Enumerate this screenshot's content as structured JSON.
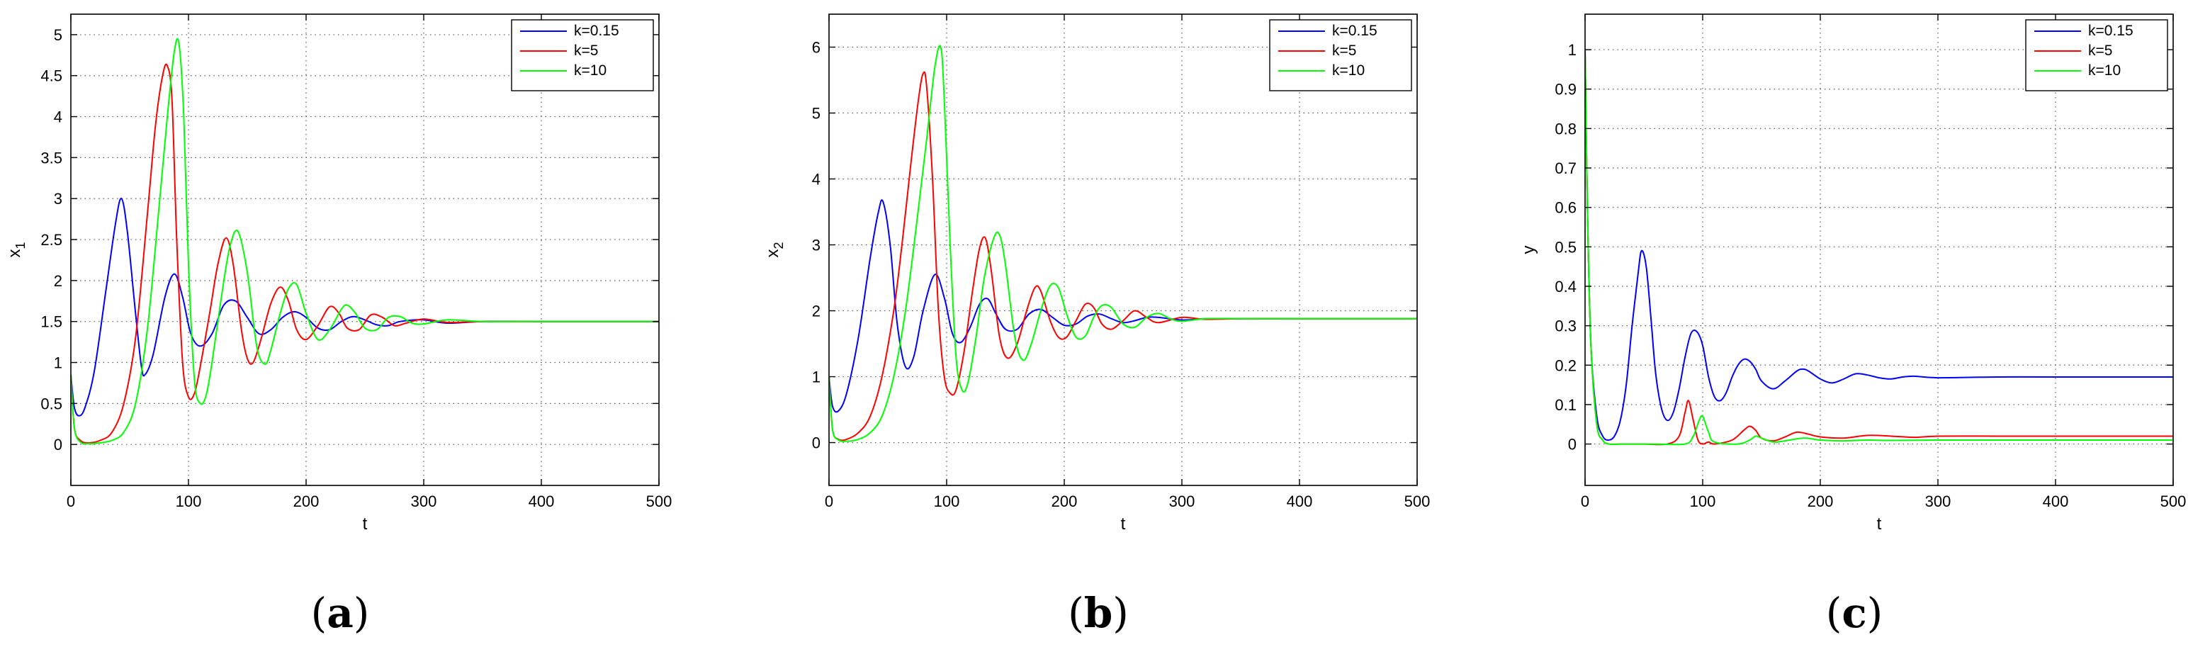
{
  "panels": [
    {
      "label": "(a)",
      "label_letter": "a",
      "chart_data": {
        "type": "line",
        "title": "",
        "xlabel": "t",
        "ylabel": "x",
        "ylabel_sub": "1",
        "xlim": [
          0,
          500
        ],
        "ylim": [
          -0.5,
          5.25
        ],
        "xticks": [
          0,
          100,
          200,
          300,
          400,
          500
        ],
        "yticks": [
          0,
          0.5,
          1,
          1.5,
          2,
          2.5,
          3,
          3.5,
          4,
          4.5,
          5
        ],
        "grid": true,
        "legend_position": "top-right",
        "series": [
          {
            "name": "k=0.15",
            "color": "#0000ff",
            "x": [
              0,
              3,
              7,
              12,
              20,
              30,
              38,
              43,
              48,
              55,
              60,
              63,
              70,
              80,
              88,
              95,
              102,
              110,
              120,
              130,
              140,
              150,
              160,
              170,
              180,
              190,
              200,
              210,
              220,
              230,
              240,
              250,
              260,
              270,
              280,
              300,
              320,
              350,
              400,
              450,
              500
            ],
            "y": [
              0.85,
              0.45,
              0.35,
              0.45,
              0.9,
              1.9,
              2.7,
              3.0,
              2.6,
              1.6,
              0.95,
              0.85,
              1.1,
              1.8,
              2.08,
              1.8,
              1.35,
              1.2,
              1.35,
              1.7,
              1.75,
              1.55,
              1.35,
              1.4,
              1.55,
              1.62,
              1.55,
              1.42,
              1.4,
              1.5,
              1.56,
              1.52,
              1.46,
              1.45,
              1.5,
              1.52,
              1.48,
              1.5,
              1.5,
              1.5,
              1.5
            ]
          },
          {
            "name": "k=5",
            "color": "#ff0000",
            "x": [
              0,
              3,
              8,
              15,
              25,
              35,
              45,
              55,
              65,
              72,
              78,
              82,
              86,
              90,
              95,
              100,
              105,
              110,
              118,
              125,
              132,
              138,
              145,
              150,
              155,
              162,
              170,
              178,
              185,
              192,
              200,
              210,
              220,
              228,
              235,
              245,
              255,
              265,
              275,
              285,
              300,
              320,
              350,
              400,
              450,
              500
            ],
            "y": [
              0.85,
              0.2,
              0.05,
              0.02,
              0.05,
              0.15,
              0.5,
              1.3,
              2.8,
              3.9,
              4.5,
              4.62,
              4.2,
              2.5,
              1.0,
              0.58,
              0.62,
              0.95,
              1.6,
              2.2,
              2.52,
              2.2,
              1.4,
              1.05,
              1.0,
              1.3,
              1.72,
              1.92,
              1.75,
              1.4,
              1.28,
              1.45,
              1.68,
              1.6,
              1.42,
              1.4,
              1.58,
              1.55,
              1.45,
              1.48,
              1.53,
              1.49,
              1.5,
              1.5,
              1.5,
              1.5
            ]
          },
          {
            "name": "k=10",
            "color": "#00ff00",
            "x": [
              0,
              3,
              8,
              15,
              25,
              35,
              45,
              55,
              65,
              75,
              82,
              88,
              92,
              96,
              100,
              105,
              110,
              115,
              120,
              128,
              135,
              142,
              150,
              158,
              165,
              170,
              178,
              185,
              192,
              200,
              210,
              220,
              230,
              235,
              242,
              250,
              260,
              270,
              280,
              290,
              300,
              320,
              350,
              400,
              450,
              500
            ],
            "y": [
              0.85,
              0.2,
              0.03,
              0.01,
              0.02,
              0.05,
              0.15,
              0.5,
              1.4,
              2.9,
              4.0,
              4.8,
              4.88,
              4.0,
              2.2,
              0.8,
              0.5,
              0.6,
              1.0,
              1.8,
              2.4,
              2.6,
              2.1,
              1.2,
              0.98,
              1.15,
              1.6,
              1.9,
              1.95,
              1.6,
              1.28,
              1.4,
              1.65,
              1.7,
              1.6,
              1.42,
              1.4,
              1.55,
              1.56,
              1.48,
              1.47,
              1.52,
              1.5,
              1.5,
              1.5,
              1.5
            ]
          }
        ]
      }
    },
    {
      "label": "(b)",
      "label_letter": "b",
      "chart_data": {
        "type": "line",
        "title": "",
        "xlabel": "t",
        "ylabel": "x",
        "ylabel_sub": "2",
        "xlim": [
          0,
          500
        ],
        "ylim": [
          -0.65,
          6.5
        ],
        "xticks": [
          0,
          100,
          200,
          300,
          400,
          500
        ],
        "yticks": [
          0,
          1,
          2,
          3,
          4,
          5,
          6
        ],
        "grid": true,
        "legend_position": "top-right",
        "series": [
          {
            "name": "k=0.15",
            "color": "#0000ff",
            "x": [
              0,
              3,
              8,
              15,
              25,
              35,
              42,
              46,
              52,
              58,
              65,
              72,
              80,
              90,
              98,
              105,
              112,
              120,
              128,
              135,
              142,
              150,
              160,
              170,
              180,
              190,
              200,
              210,
              220,
              230,
              240,
              250,
              260,
              270,
              280,
              300,
              320,
              350,
              400,
              450,
              500
            ],
            "y": [
              1.0,
              0.55,
              0.48,
              0.75,
              1.6,
              2.8,
              3.5,
              3.65,
              3.0,
              1.8,
              1.15,
              1.3,
              2.0,
              2.55,
              2.2,
              1.65,
              1.52,
              1.75,
              2.1,
              2.18,
              1.95,
              1.72,
              1.72,
              1.95,
              2.02,
              1.9,
              1.78,
              1.8,
              1.92,
              1.95,
              1.88,
              1.82,
              1.85,
              1.9,
              1.9,
              1.86,
              1.88,
              1.88,
              1.88,
              1.88,
              1.88
            ]
          },
          {
            "name": "k=5",
            "color": "#ff0000",
            "x": [
              0,
              3,
              8,
              15,
              25,
              35,
              45,
              55,
              62,
              70,
              76,
              80,
              83,
              88,
              93,
              98,
              103,
              108,
              115,
              122,
              128,
              133,
              138,
              145,
              152,
              160,
              168,
              175,
              180,
              188,
              195,
              202,
              210,
              218,
              225,
              232,
              240,
              250,
              260,
              270,
              280,
              300,
              320,
              350,
              400,
              450,
              500
            ],
            "y": [
              1.0,
              0.2,
              0.05,
              0.05,
              0.15,
              0.4,
              1.0,
              2.0,
              3.0,
              4.3,
              5.2,
              5.6,
              5.4,
              4.0,
              2.0,
              1.0,
              0.75,
              0.8,
              1.4,
              2.3,
              2.95,
              3.1,
              2.6,
              1.6,
              1.28,
              1.5,
              2.0,
              2.35,
              2.3,
              1.85,
              1.6,
              1.6,
              1.85,
              2.1,
              2.05,
              1.8,
              1.72,
              1.85,
              2.0,
              1.9,
              1.82,
              1.9,
              1.87,
              1.88,
              1.88,
              1.88,
              1.88
            ]
          },
          {
            "name": "k=10",
            "color": "#00ff00",
            "x": [
              0,
              3,
              8,
              15,
              25,
              35,
              45,
              55,
              65,
              75,
              83,
              90,
              95,
              98,
              103,
              108,
              113,
              118,
              125,
              132,
              140,
              145,
              150,
              158,
              165,
              172,
              180,
              188,
              195,
              202,
              210,
              218,
              225,
              232,
              240,
              250,
              260,
              270,
              280,
              290,
              300,
              320,
              350,
              400,
              450,
              500
            ],
            "y": [
              1.0,
              0.2,
              0.04,
              0.02,
              0.05,
              0.15,
              0.4,
              1.0,
              2.0,
              3.4,
              4.6,
              5.7,
              6.0,
              5.2,
              3.0,
              1.3,
              0.8,
              0.9,
              1.6,
              2.5,
              3.1,
              3.15,
              2.7,
              1.6,
              1.25,
              1.5,
              2.0,
              2.38,
              2.35,
              1.95,
              1.6,
              1.62,
              1.9,
              2.08,
              2.05,
              1.8,
              1.75,
              1.9,
              1.96,
              1.88,
              1.84,
              1.88,
              1.88,
              1.88,
              1.88,
              1.88
            ]
          }
        ]
      }
    },
    {
      "label": "(c)",
      "label_letter": "c",
      "chart_data": {
        "type": "line",
        "title": "",
        "xlabel": "t",
        "ylabel": "y",
        "ylabel_sub": "",
        "xlim": [
          0,
          500
        ],
        "ylim": [
          -0.105,
          1.09
        ],
        "xticks": [
          0,
          100,
          200,
          300,
          400,
          500
        ],
        "yticks": [
          0,
          0.1,
          0.2,
          0.3,
          0.4,
          0.5,
          0.6,
          0.7,
          0.8,
          0.9,
          1
        ],
        "grid": true,
        "legend_position": "top-right",
        "series": [
          {
            "name": "k=0.15",
            "color": "#0000ff",
            "x": [
              0,
              2,
              5,
              10,
              15,
              20,
              25,
              30,
              35,
              40,
              45,
              48,
              52,
              56,
              60,
              65,
              70,
              75,
              80,
              85,
              90,
              95,
              100,
              105,
              110,
              115,
              120,
              125,
              130,
              135,
              140,
              145,
              150,
              160,
              170,
              180,
              185,
              190,
              200,
              210,
              220,
              230,
              240,
              250,
              260,
              270,
              280,
              300,
              350,
              400,
              450,
              500
            ],
            "y": [
              1.0,
              0.6,
              0.25,
              0.07,
              0.02,
              0.01,
              0.02,
              0.06,
              0.15,
              0.3,
              0.43,
              0.49,
              0.45,
              0.32,
              0.18,
              0.09,
              0.06,
              0.08,
              0.14,
              0.22,
              0.28,
              0.285,
              0.25,
              0.17,
              0.12,
              0.11,
              0.13,
              0.17,
              0.2,
              0.215,
              0.21,
              0.19,
              0.16,
              0.14,
              0.16,
              0.185,
              0.19,
              0.185,
              0.165,
              0.155,
              0.165,
              0.178,
              0.175,
              0.168,
              0.165,
              0.17,
              0.172,
              0.168,
              0.17,
              0.17,
              0.17,
              0.17
            ]
          },
          {
            "name": "k=5",
            "color": "#ff0000",
            "x": [
              0,
              2,
              5,
              10,
              15,
              20,
              30,
              50,
              70,
              80,
              85,
              88,
              92,
              96,
              100,
              105,
              110,
              125,
              135,
              140,
              145,
              150,
              160,
              170,
              180,
              190,
              200,
              220,
              240,
              260,
              280,
              300,
              350,
              400,
              450,
              500
            ],
            "y": [
              1.0,
              0.6,
              0.25,
              0.05,
              0.01,
              0.0,
              0.0,
              0.0,
              0.0,
              0.02,
              0.08,
              0.11,
              0.06,
              0.01,
              0.0,
              0.005,
              0.0,
              0.01,
              0.035,
              0.045,
              0.035,
              0.015,
              0.008,
              0.018,
              0.03,
              0.025,
              0.018,
              0.015,
              0.022,
              0.02,
              0.017,
              0.02,
              0.02,
              0.02,
              0.02,
              0.02
            ]
          },
          {
            "name": "k=10",
            "color": "#00ff00",
            "x": [
              0,
              2,
              5,
              10,
              15,
              20,
              30,
              60,
              85,
              92,
              97,
              100,
              105,
              110,
              130,
              140,
              145,
              150,
              160,
              170,
              185,
              195,
              200,
              220,
              240,
              260,
              300,
              350,
              400,
              450,
              500
            ],
            "y": [
              1.0,
              0.6,
              0.25,
              0.05,
              0.01,
              0.0,
              0.0,
              0.0,
              0.0,
              0.02,
              0.06,
              0.07,
              0.03,
              0.005,
              0.0,
              0.01,
              0.02,
              0.015,
              0.005,
              0.008,
              0.015,
              0.012,
              0.01,
              0.008,
              0.01,
              0.009,
              0.01,
              0.01,
              0.01,
              0.01,
              0.01
            ]
          }
        ]
      }
    }
  ]
}
